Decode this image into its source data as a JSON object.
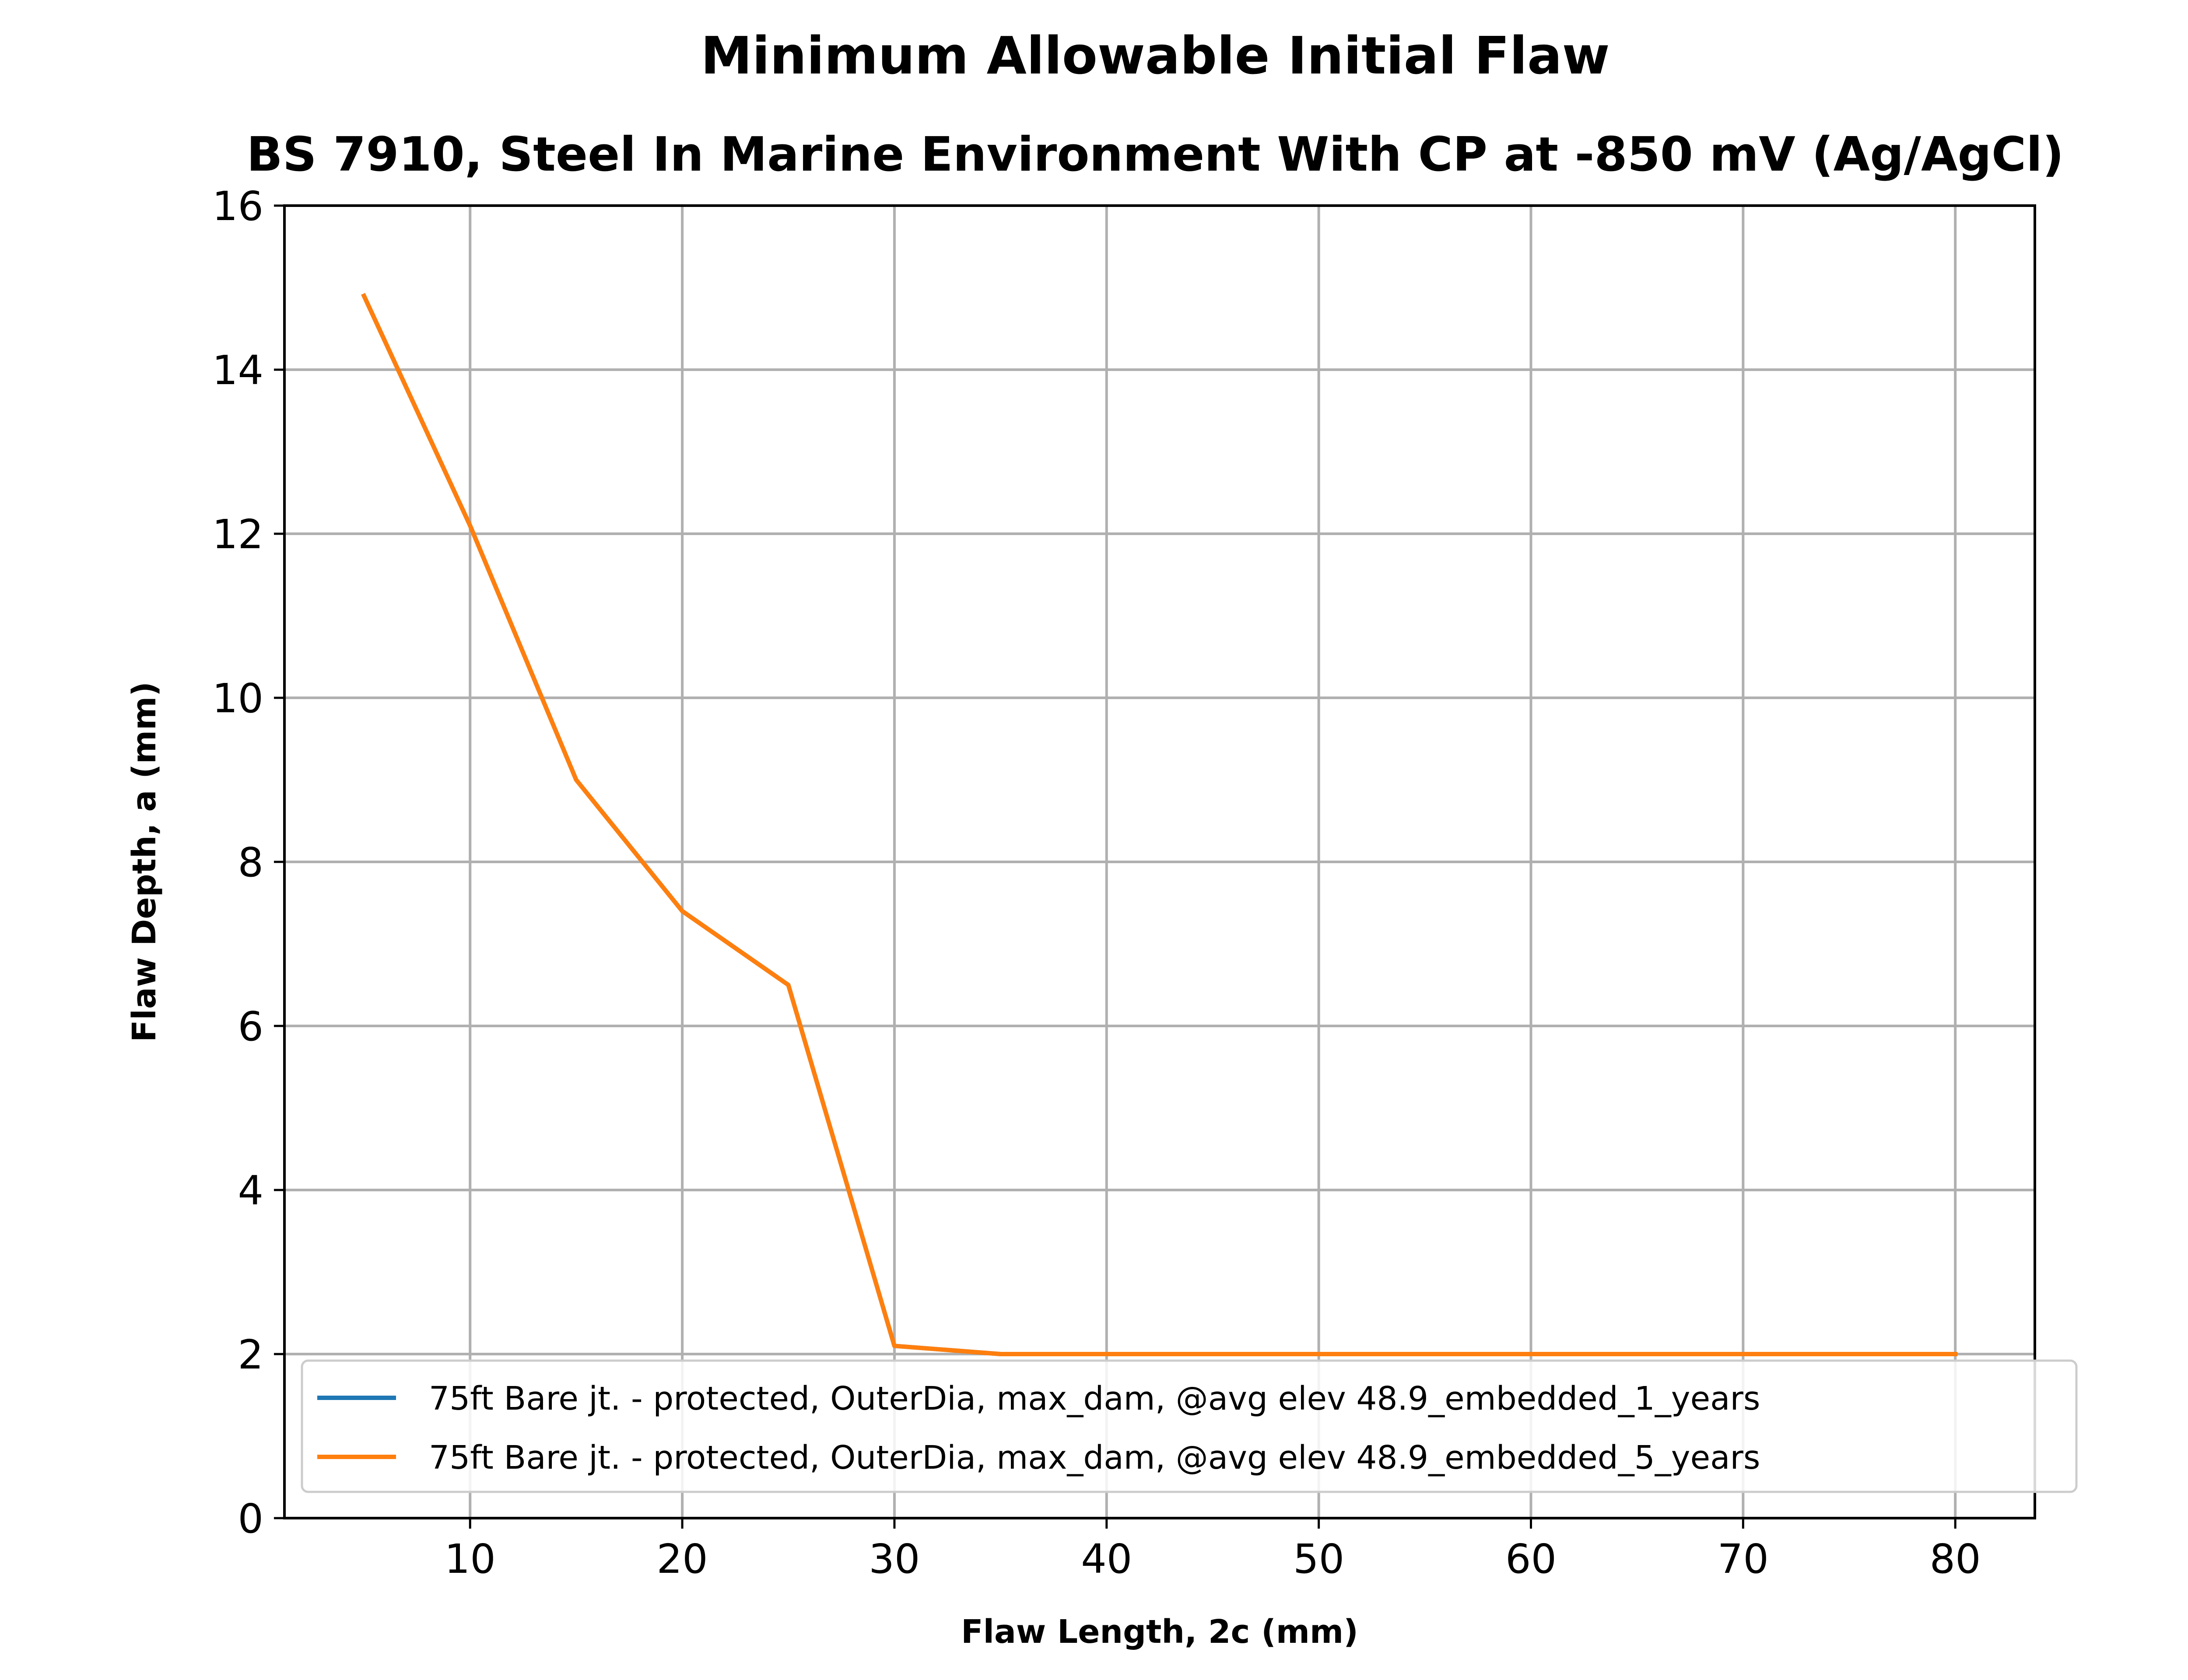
{
  "chart_data": {
    "type": "line",
    "title": "Minimum Allowable Initial Flaw",
    "subtitle": "BS 7910, Steel In Marine Environment With CP at -850 mV (Ag/AgCl)",
    "xlabel": "Flaw Length, 2c (mm)",
    "ylabel": "Flaw Depth, a (mm)",
    "xlim": [
      1.25,
      83.75
    ],
    "ylim": [
      0,
      16
    ],
    "xticks": [
      10,
      20,
      30,
      40,
      50,
      60,
      70,
      80
    ],
    "yticks": [
      0,
      2,
      4,
      6,
      8,
      10,
      12,
      14,
      16
    ],
    "grid": true,
    "legend_position": "lower-right",
    "series": [
      {
        "name": "75ft Bare jt.  - protected, OuterDia, max_dam, @avg elev 48.9_embedded_1_years",
        "color": "#1f77b4",
        "x": [
          5,
          10,
          15,
          20,
          25,
          30,
          35,
          40,
          45,
          50,
          55,
          60,
          65,
          70,
          75,
          80
        ],
        "y": [
          14.9,
          12.1,
          9.0,
          7.4,
          6.5,
          2.1,
          2.0,
          2.0,
          2.0,
          2.0,
          2.0,
          2.0,
          2.0,
          2.0,
          2.0,
          2.0
        ]
      },
      {
        "name": "75ft Bare jt.  - protected, OuterDia, max_dam, @avg elev 48.9_embedded_5_years",
        "color": "#ff7f0e",
        "x": [
          5,
          10,
          15,
          20,
          25,
          30,
          35,
          40,
          45,
          50,
          55,
          60,
          65,
          70,
          75,
          80
        ],
        "y": [
          14.9,
          12.1,
          9.0,
          7.4,
          6.5,
          2.1,
          2.0,
          2.0,
          2.0,
          2.0,
          2.0,
          2.0,
          2.0,
          2.0,
          2.0,
          2.0
        ]
      }
    ]
  }
}
